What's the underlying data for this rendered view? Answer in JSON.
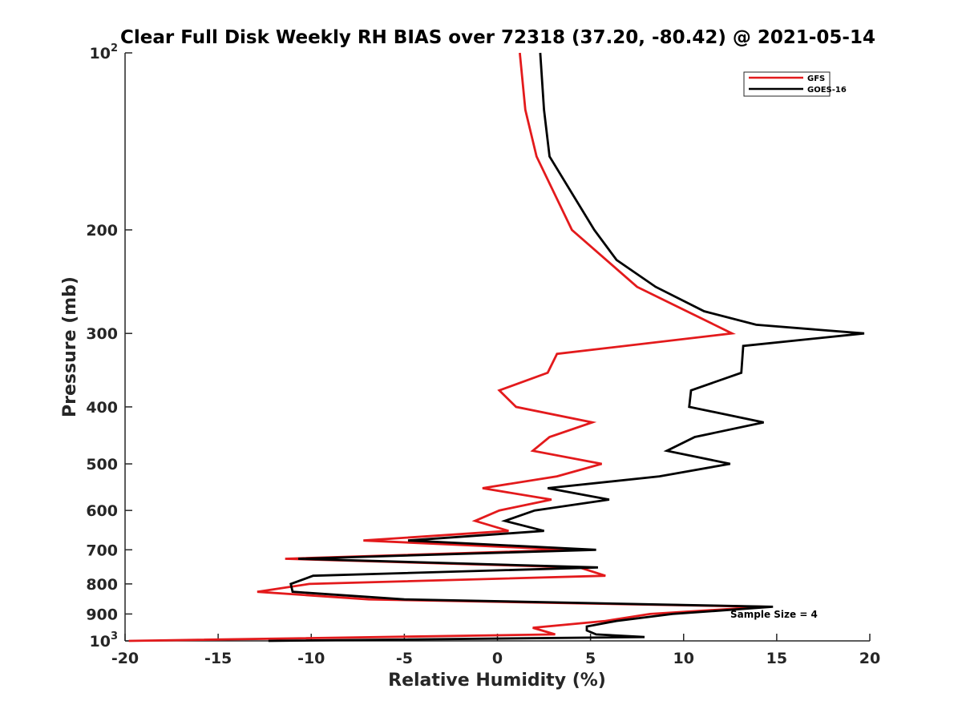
{
  "chart_data": {
    "type": "line",
    "title": "Clear Full Disk Weekly RH BIAS over 72318 (37.20, -80.42) @ 2021-05-14",
    "xlabel": "Relative Humidity (%)",
    "ylabel": "Pressure (mb)",
    "xlim": [
      -20,
      20
    ],
    "ylim": [
      100,
      1000
    ],
    "y_scale": "log",
    "y_reversed": true,
    "grid": false,
    "x_ticks": [
      "-20",
      "-15",
      "-10",
      "-5",
      "0",
      "5",
      "10",
      "15",
      "20"
    ],
    "y_ticks": [
      {
        "value": 100,
        "base": "10",
        "exp": "2"
      },
      {
        "value": 200,
        "label": "200"
      },
      {
        "value": 300,
        "label": "300"
      },
      {
        "value": 400,
        "label": "400"
      },
      {
        "value": 500,
        "label": "500"
      },
      {
        "value": 600,
        "label": "600"
      },
      {
        "value": 700,
        "label": "700"
      },
      {
        "value": 800,
        "label": "800"
      },
      {
        "value": 900,
        "label": "900"
      },
      {
        "value": 1000,
        "base": "10",
        "exp": "3"
      }
    ],
    "legend_position": "top-right",
    "series": [
      {
        "name": "GFS",
        "color": "#e31a1c",
        "points": [
          [
            1.2,
            100
          ],
          [
            1.5,
            125
          ],
          [
            2.1,
            150
          ],
          [
            4.0,
            200
          ],
          [
            7.5,
            250
          ],
          [
            12.6,
            300
          ],
          [
            3.2,
            325
          ],
          [
            2.7,
            350
          ],
          [
            0.1,
            375
          ],
          [
            1.0,
            400
          ],
          [
            5.1,
            425
          ],
          [
            2.8,
            450
          ],
          [
            1.9,
            475
          ],
          [
            5.6,
            500
          ],
          [
            3.2,
            525
          ],
          [
            -0.8,
            550
          ],
          [
            2.9,
            575
          ],
          [
            0.1,
            600
          ],
          [
            -1.2,
            625
          ],
          [
            0.6,
            650
          ],
          [
            -7.2,
            675
          ],
          [
            3.9,
            700
          ],
          [
            -11.4,
            725
          ],
          [
            4.4,
            750
          ],
          [
            5.8,
            775
          ],
          [
            -10.1,
            800
          ],
          [
            -12.9,
            825
          ],
          [
            -6.9,
            850
          ],
          [
            14.4,
            875
          ],
          [
            8.2,
            900
          ],
          [
            5.8,
            925
          ],
          [
            1.9,
            950
          ],
          [
            3.1,
            975
          ],
          [
            -19.8,
            1000
          ]
        ]
      },
      {
        "name": "GOES-16",
        "color": "#000000",
        "points": [
          [
            2.3,
            100
          ],
          [
            2.5,
            125
          ],
          [
            2.8,
            150
          ],
          [
            5.2,
            200
          ],
          [
            6.4,
            225
          ],
          [
            8.5,
            250
          ],
          [
            11.1,
            275
          ],
          [
            13.9,
            290
          ],
          [
            19.7,
            300
          ],
          [
            13.2,
            315
          ],
          [
            13.1,
            350
          ],
          [
            10.4,
            375
          ],
          [
            10.3,
            400
          ],
          [
            14.3,
            425
          ],
          [
            10.6,
            450
          ],
          [
            9.1,
            475
          ],
          [
            12.5,
            500
          ],
          [
            8.7,
            525
          ],
          [
            2.7,
            550
          ],
          [
            6.0,
            575
          ],
          [
            2.0,
            600
          ],
          [
            0.4,
            625
          ],
          [
            2.5,
            650
          ],
          [
            -4.8,
            675
          ],
          [
            5.3,
            700
          ],
          [
            -10.7,
            725
          ],
          [
            5.4,
            750
          ],
          [
            -9.9,
            775
          ],
          [
            -11.1,
            800
          ],
          [
            -11.0,
            825
          ],
          [
            -5.0,
            850
          ],
          [
            14.8,
            875
          ],
          [
            9.4,
            900
          ],
          [
            6.4,
            925
          ],
          [
            4.8,
            945
          ],
          [
            4.8,
            960
          ],
          [
            5.3,
            975
          ],
          [
            7.9,
            985
          ],
          [
            -12.3,
            1000
          ]
        ]
      }
    ],
    "annotations": [
      "Sample Size = 4"
    ]
  }
}
